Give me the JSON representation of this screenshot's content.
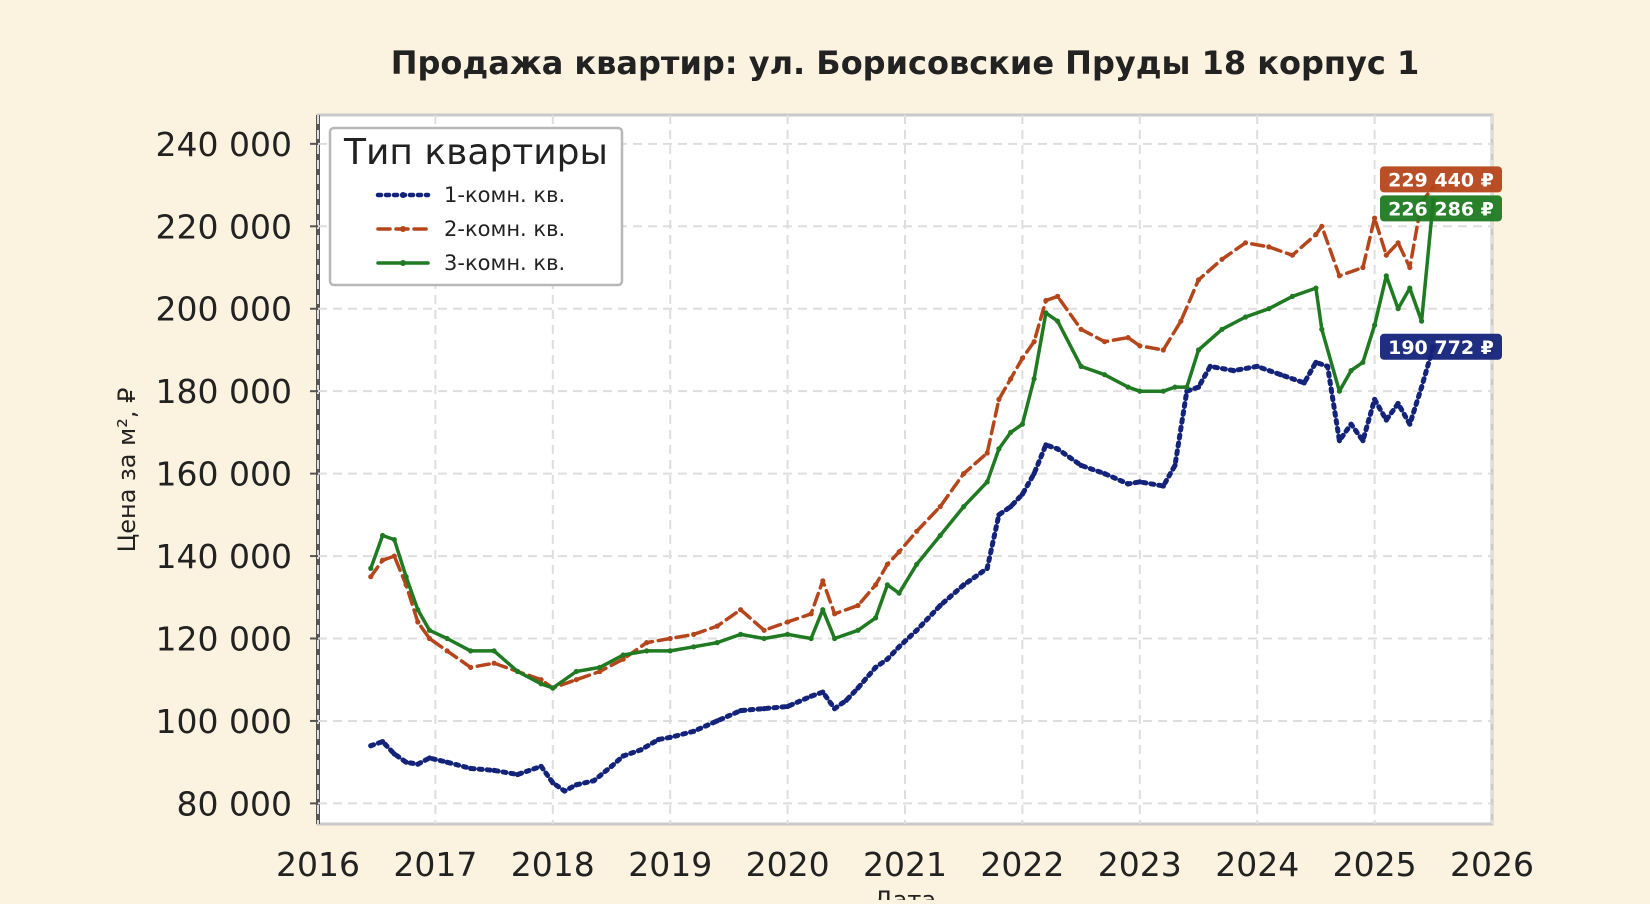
{
  "chart_data": {
    "type": "line",
    "title": "Продажа квартир: ул. Борисовские Пруды 18 корпус 1",
    "xlabel": "Дата",
    "ylabel": "Цена за м², ₽",
    "xlim": [
      2016,
      2026
    ],
    "ylim": [
      75000,
      247000
    ],
    "x_ticks": [
      "2016",
      "2017",
      "2018",
      "2019",
      "2020",
      "2021",
      "2022",
      "2023",
      "2024",
      "2025",
      "2026"
    ],
    "y_ticks": [
      "80 000",
      "100 000",
      "120 000",
      "140 000",
      "160 000",
      "180 000",
      "200 000",
      "220 000",
      "240 000"
    ],
    "grid": true,
    "legend": {
      "title": "Тип квартиры",
      "placement": "top-left"
    },
    "series": [
      {
        "name": "1-комн. кв.",
        "color": "#14237a",
        "style": "dotted",
        "end_label": "190 772 ₽",
        "x": [
          2016.45,
          2016.55,
          2016.65,
          2016.75,
          2016.85,
          2016.95,
          2017.1,
          2017.3,
          2017.5,
          2017.7,
          2017.9,
          2018.0,
          2018.1,
          2018.2,
          2018.35,
          2018.5,
          2018.6,
          2018.75,
          2018.9,
          2019.0,
          2019.2,
          2019.4,
          2019.6,
          2019.8,
          2020.0,
          2020.2,
          2020.3,
          2020.4,
          2020.5,
          2020.6,
          2020.75,
          2020.85,
          2020.95,
          2021.1,
          2021.3,
          2021.5,
          2021.7,
          2021.8,
          2021.9,
          2022.0,
          2022.1,
          2022.2,
          2022.3,
          2022.5,
          2022.7,
          2022.9,
          2023.0,
          2023.2,
          2023.3,
          2023.4,
          2023.5,
          2023.6,
          2023.8,
          2024.0,
          2024.2,
          2024.4,
          2024.5,
          2024.6,
          2024.7,
          2024.8,
          2024.9,
          2025.0,
          2025.1,
          2025.2,
          2025.3,
          2025.4,
          2025.5
        ],
        "y": [
          94000,
          95000,
          92000,
          90000,
          89500,
          91000,
          90000,
          88500,
          88000,
          87000,
          89000,
          85000,
          83000,
          84500,
          85500,
          89000,
          91500,
          93000,
          95500,
          96000,
          97500,
          100000,
          102500,
          103000,
          103500,
          106000,
          107000,
          103000,
          105000,
          108000,
          113000,
          115000,
          118000,
          122000,
          128000,
          133000,
          137000,
          150000,
          152000,
          155000,
          160000,
          167000,
          166000,
          162000,
          160000,
          157500,
          158000,
          157000,
          162000,
          180000,
          181000,
          186000,
          185000,
          186000,
          184000,
          182000,
          187000,
          186000,
          168000,
          172000,
          168000,
          178000,
          173000,
          177000,
          172000,
          181000,
          190772
        ]
      },
      {
        "name": "2-комн. кв.",
        "color": "#b5451b",
        "style": "dashed",
        "end_label": "229 440 ₽",
        "x": [
          2016.45,
          2016.55,
          2016.65,
          2016.75,
          2016.85,
          2016.95,
          2017.1,
          2017.3,
          2017.5,
          2017.7,
          2017.9,
          2018.0,
          2018.2,
          2018.4,
          2018.6,
          2018.8,
          2019.0,
          2019.2,
          2019.4,
          2019.6,
          2019.8,
          2020.0,
          2020.2,
          2020.3,
          2020.4,
          2020.6,
          2020.75,
          2020.85,
          2020.95,
          2021.1,
          2021.3,
          2021.5,
          2021.7,
          2021.8,
          2021.9,
          2022.0,
          2022.1,
          2022.2,
          2022.3,
          2022.5,
          2022.7,
          2022.9,
          2023.0,
          2023.2,
          2023.35,
          2023.5,
          2023.7,
          2023.9,
          2024.1,
          2024.3,
          2024.5,
          2024.55,
          2024.7,
          2024.9,
          2025.0,
          2025.1,
          2025.2,
          2025.3,
          2025.4,
          2025.5
        ],
        "y": [
          135000,
          139000,
          140000,
          133000,
          124000,
          120000,
          117000,
          113000,
          114000,
          112000,
          110000,
          108000,
          110000,
          112000,
          115000,
          119000,
          120000,
          121000,
          123000,
          127000,
          122000,
          124000,
          126000,
          134000,
          126000,
          128000,
          133000,
          138000,
          141000,
          146000,
          152000,
          160000,
          165000,
          178000,
          183000,
          188000,
          192000,
          202000,
          203000,
          195000,
          192000,
          193000,
          191000,
          190000,
          197000,
          207000,
          212000,
          216000,
          215000,
          213000,
          218000,
          220000,
          208000,
          210000,
          222000,
          213000,
          216000,
          210000,
          226000,
          229440
        ]
      },
      {
        "name": "3-комн. кв.",
        "color": "#1f7a21",
        "style": "solid",
        "end_label": "226 286 ₽",
        "x": [
          2016.45,
          2016.55,
          2016.65,
          2016.75,
          2016.85,
          2016.95,
          2017.1,
          2017.3,
          2017.5,
          2017.7,
          2017.9,
          2018.0,
          2018.2,
          2018.4,
          2018.6,
          2018.8,
          2019.0,
          2019.2,
          2019.4,
          2019.6,
          2019.8,
          2020.0,
          2020.2,
          2020.3,
          2020.4,
          2020.6,
          2020.75,
          2020.85,
          2020.95,
          2021.1,
          2021.3,
          2021.5,
          2021.7,
          2021.8,
          2021.9,
          2022.0,
          2022.1,
          2022.2,
          2022.3,
          2022.5,
          2022.7,
          2022.9,
          2023.0,
          2023.2,
          2023.3,
          2023.4,
          2023.5,
          2023.7,
          2023.9,
          2024.1,
          2024.3,
          2024.5,
          2024.55,
          2024.7,
          2024.8,
          2024.9,
          2025.0,
          2025.1,
          2025.2,
          2025.3,
          2025.4,
          2025.5
        ],
        "y": [
          137000,
          145000,
          144000,
          135000,
          127000,
          122000,
          120000,
          117000,
          117000,
          112000,
          109000,
          108000,
          112000,
          113000,
          116000,
          117000,
          117000,
          118000,
          119000,
          121000,
          120000,
          121000,
          120000,
          127000,
          120000,
          122000,
          125000,
          133000,
          131000,
          138000,
          145000,
          152000,
          158000,
          166000,
          170000,
          172000,
          183000,
          199000,
          197000,
          186000,
          184000,
          181000,
          180000,
          180000,
          181000,
          181000,
          190000,
          195000,
          198000,
          200000,
          203000,
          205000,
          195000,
          180000,
          185000,
          187000,
          196000,
          208000,
          200000,
          205000,
          197000,
          226286
        ]
      }
    ]
  }
}
